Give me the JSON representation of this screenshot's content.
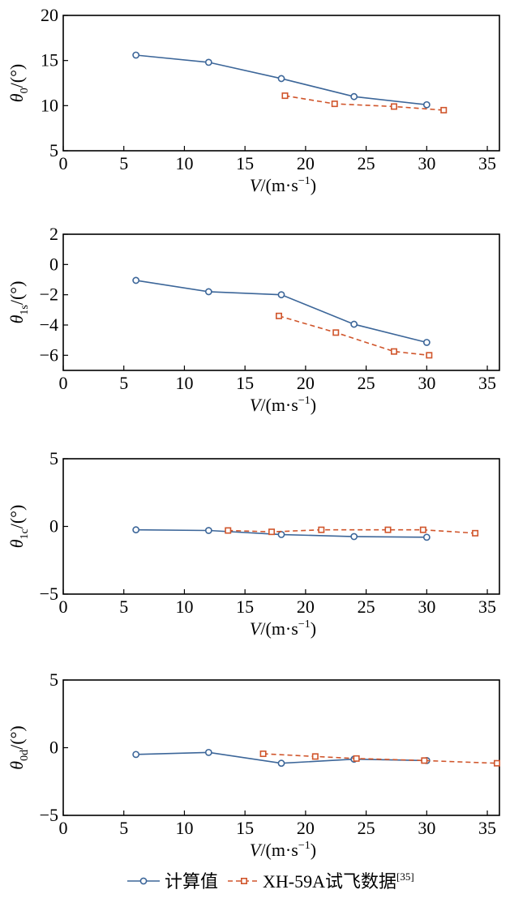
{
  "colors": {
    "calc": "#3c6699",
    "flight": "#d0552b",
    "axis": "#000000"
  },
  "legend": {
    "calc_label": "计算值",
    "flight_label": "XH-59A试飞数据",
    "flight_ref": "[35]"
  },
  "chart_data": [
    {
      "type": "line",
      "ylabel": {
        "symbol": "θ",
        "sub": "0",
        "unit": "/(°)"
      },
      "xlabel": {
        "symbol": "V",
        "unit": "/(m·s",
        "sup": "−1",
        "close": ")"
      },
      "xlim": [
        0,
        36
      ],
      "ylim": [
        5,
        20
      ],
      "xticks": [
        0,
        5,
        10,
        15,
        20,
        25,
        30,
        35
      ],
      "yticks": [
        5,
        10,
        15,
        20
      ],
      "ytick_labels": [
        "5",
        "10",
        "15",
        "20"
      ],
      "series": [
        {
          "key": "calc",
          "x": [
            6,
            12,
            18,
            24,
            30
          ],
          "y": [
            15.6,
            14.8,
            13.0,
            11.0,
            10.1
          ]
        },
        {
          "key": "flight",
          "x": [
            18.3,
            22.4,
            27.3,
            31.4
          ],
          "y": [
            11.1,
            10.2,
            9.9,
            9.5
          ]
        }
      ]
    },
    {
      "type": "line",
      "ylabel": {
        "symbol": "θ",
        "sub": "1s",
        "unit": "/(°)"
      },
      "xlabel": {
        "symbol": "V",
        "unit": "/(m·s",
        "sup": "−1",
        "close": ")"
      },
      "xlim": [
        0,
        36
      ],
      "ylim": [
        -7,
        2
      ],
      "xticks": [
        0,
        5,
        10,
        15,
        20,
        25,
        30,
        35
      ],
      "yticks": [
        2,
        0,
        -2,
        -4,
        -6
      ],
      "ytick_labels": [
        "2",
        "0",
        "−2",
        "−4",
        "−6"
      ],
      "series": [
        {
          "key": "calc",
          "x": [
            6,
            12,
            18,
            24,
            30
          ],
          "y": [
            -1.05,
            -1.8,
            -2.0,
            -3.95,
            -5.15
          ]
        },
        {
          "key": "flight",
          "x": [
            17.8,
            22.5,
            27.3,
            30.2
          ],
          "y": [
            -3.4,
            -4.5,
            -5.75,
            -6.0
          ]
        }
      ]
    },
    {
      "type": "line",
      "ylabel": {
        "symbol": "θ",
        "sub": "1c",
        "unit": "/(°)"
      },
      "xlabel": {
        "symbol": "V",
        "unit": "/(m·s",
        "sup": "−1",
        "close": ")"
      },
      "xlim": [
        0,
        36
      ],
      "ylim": [
        -5,
        5
      ],
      "xticks": [
        0,
        5,
        10,
        15,
        20,
        25,
        30,
        35
      ],
      "yticks": [
        5,
        0,
        -5
      ],
      "ytick_labels": [
        "5",
        "0",
        "−5"
      ],
      "series": [
        {
          "key": "calc",
          "x": [
            6,
            12,
            18,
            24,
            30
          ],
          "y": [
            -0.25,
            -0.3,
            -0.6,
            -0.75,
            -0.8
          ]
        },
        {
          "key": "flight",
          "x": [
            13.6,
            17.2,
            21.3,
            26.8,
            29.7,
            34.0
          ],
          "y": [
            -0.3,
            -0.4,
            -0.25,
            -0.25,
            -0.25,
            -0.5
          ]
        }
      ]
    },
    {
      "type": "line",
      "ylabel": {
        "symbol": "θ",
        "sub": "0d",
        "unit": "/(°)"
      },
      "xlabel": {
        "symbol": "V",
        "unit": "/(m·s",
        "sup": "−1",
        "close": ")"
      },
      "xlim": [
        0,
        36
      ],
      "ylim": [
        -5,
        5
      ],
      "xticks": [
        0,
        5,
        10,
        15,
        20,
        25,
        30,
        35
      ],
      "yticks": [
        5,
        0,
        -5
      ],
      "ytick_labels": [
        "5",
        "0",
        "−5"
      ],
      "series": [
        {
          "key": "calc",
          "x": [
            6,
            12,
            18,
            24,
            30
          ],
          "y": [
            -0.5,
            -0.35,
            -1.15,
            -0.85,
            -0.95
          ]
        },
        {
          "key": "flight",
          "x": [
            16.5,
            20.8,
            24.2,
            29.8,
            35.8
          ],
          "y": [
            -0.45,
            -0.65,
            -0.8,
            -0.95,
            -1.15
          ]
        }
      ]
    }
  ]
}
